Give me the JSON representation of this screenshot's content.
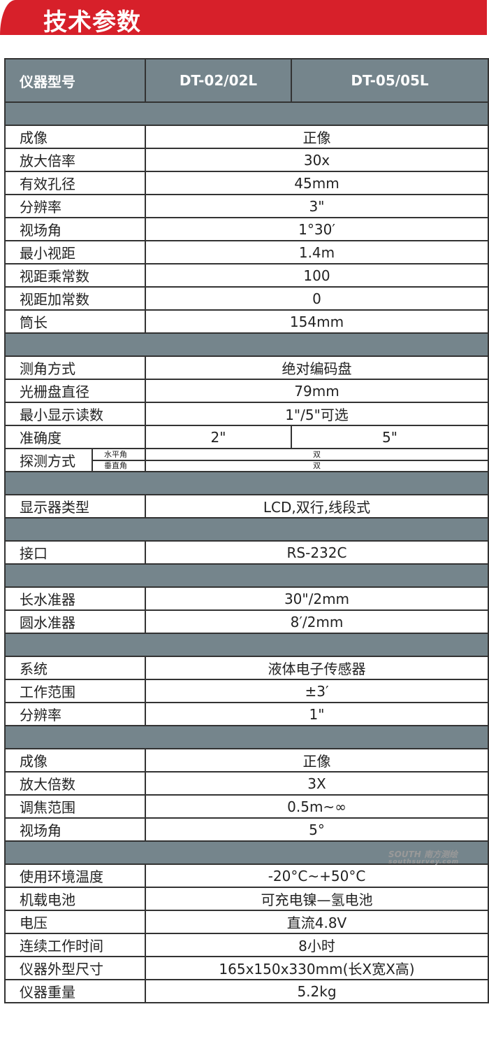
{
  "title": "技术参数",
  "header": [
    "仪器型号",
    "DT-02/02L",
    "DT-05/05L"
  ],
  "rows": [
    {
      "t": "sec"
    },
    {
      "l": "成像",
      "v": "正像"
    },
    {
      "l": "放大倍率",
      "v": "30x"
    },
    {
      "l": "有效孔径",
      "v": "45mm"
    },
    {
      "l": "分辨率",
      "v": "3\""
    },
    {
      "l": "视场角",
      "v": "1°30′"
    },
    {
      "l": "最小视距",
      "v": "1.4m"
    },
    {
      "l": "视距乘常数",
      "v": "100"
    },
    {
      "l": "视距加常数",
      "v": "0"
    },
    {
      "l": "筒长",
      "v": "154mm"
    },
    {
      "t": "sec"
    },
    {
      "l": "测角方式",
      "v": "绝对编码盘"
    },
    {
      "l": "光栅盘直径",
      "v": "79mm"
    },
    {
      "l": "最小显示读数",
      "v": "1\"/5\"可选"
    },
    {
      "l": "准确度",
      "v": "2\"",
      "v2": "5\""
    },
    {
      "t": "detect",
      "l": "探测方式",
      "s1": "水平角",
      "v1": "双",
      "s2": "垂直角",
      "v2": "双"
    },
    {
      "t": "sec"
    },
    {
      "l": "显示器类型",
      "v": "LCD,双行,线段式"
    },
    {
      "t": "sec"
    },
    {
      "l": "接口",
      "v": "RS-232C"
    },
    {
      "t": "sec"
    },
    {
      "l": "长水准器",
      "v": "30\"/2mm"
    },
    {
      "l": "圆水准器",
      "v": "8′/2mm"
    },
    {
      "t": "sec"
    },
    {
      "l": "系统",
      "v": "液体电子传感器"
    },
    {
      "l": "工作范围",
      "v": "±3′"
    },
    {
      "l": "分辨率",
      "v": "1\""
    },
    {
      "t": "sec"
    },
    {
      "l": "成像",
      "v": "正像"
    },
    {
      "l": "放大倍数",
      "v": "3X"
    },
    {
      "l": "调焦范围",
      "v": "0.5m~∞"
    },
    {
      "l": "视场角",
      "v": "5°"
    },
    {
      "t": "sec"
    },
    {
      "l": "使用环境温度",
      "v": "-20°C~+50°C"
    },
    {
      "l": "机载电池",
      "v": "可充电镍—氢电池"
    },
    {
      "l": "电压",
      "v": "直流4.8V"
    },
    {
      "l": "连续工作时间",
      "v": "8小时"
    },
    {
      "l": "仪器外型尺寸",
      "v": "165x150x330mm(长X宽X高)"
    },
    {
      "l": "仪器重量",
      "v": "5.2kg"
    }
  ],
  "watermark": {
    "brand": "SOUTH 南方测绘",
    "url": "southsurvey.com"
  }
}
